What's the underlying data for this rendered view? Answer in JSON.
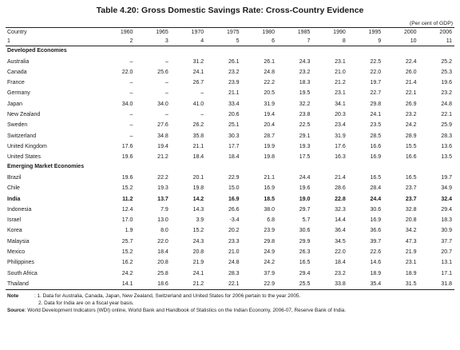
{
  "title": "Table 4.20: Gross Domestic Savings Rate: Cross-Country Evidence",
  "unit": "(Per cent of GDP)",
  "headers": [
    "Country",
    "1960",
    "1965",
    "1970",
    "1975",
    "1980",
    "1985",
    "1990",
    "1995",
    "2000",
    "2006"
  ],
  "index_row": [
    "1",
    "2",
    "3",
    "4",
    "5",
    "6",
    "7",
    "8",
    "9",
    "10",
    "11"
  ],
  "sections": [
    {
      "label": "Developed Economies",
      "rows": [
        {
          "country": "Australia",
          "values": [
            "–",
            "–",
            "31.2",
            "26.1",
            "26.1",
            "24.3",
            "23.1",
            "22.5",
            "22.4",
            "25.2"
          ]
        },
        {
          "country": "Canada",
          "values": [
            "22.0",
            "25.6",
            "24.1",
            "23.2",
            "24.8",
            "23.2",
            "21.0",
            "22.0",
            "26.0",
            "25.3"
          ]
        },
        {
          "country": "France",
          "values": [
            "–",
            "–",
            "26.7",
            "23.9",
            "22.2",
            "18.3",
            "21.2",
            "19.7",
            "21.4",
            "19.6"
          ]
        },
        {
          "country": "Germany",
          "values": [
            "–",
            "–",
            "–",
            "21.1",
            "20.5",
            "19.5",
            "23.1",
            "22.7",
            "22.1",
            "23.2"
          ]
        },
        {
          "country": "Japan",
          "values": [
            "34.0",
            "34.0",
            "41.0",
            "33.4",
            "31.9",
            "32.2",
            "34.1",
            "29.8",
            "26.9",
            "24.8"
          ]
        },
        {
          "country": "New Zealand",
          "values": [
            "–",
            "–",
            "–",
            "20.6",
            "19.4",
            "23.8",
            "20.3",
            "24.1",
            "23.2",
            "22.1"
          ]
        },
        {
          "country": "Sweden",
          "values": [
            "–",
            "27.6",
            "26.2",
            "25.1",
            "20.4",
            "22.5",
            "23.4",
            "23.5",
            "24.2",
            "25.9"
          ]
        },
        {
          "country": "Switzerland",
          "values": [
            "–",
            "34.8",
            "35.8",
            "30.3",
            "28.7",
            "29.1",
            "31.9",
            "28.5",
            "28.9",
            "28.3"
          ]
        },
        {
          "country": "United Kingdom",
          "values": [
            "17.6",
            "19.4",
            "21.1",
            "17.7",
            "19.9",
            "19.3",
            "17.6",
            "16.6",
            "15.5",
            "13.6"
          ]
        },
        {
          "country": "United States",
          "values": [
            "19.6",
            "21.2",
            "18.4",
            "18.4",
            "19.8",
            "17.5",
            "16.3",
            "16.9",
            "16.6",
            "13.5"
          ]
        }
      ]
    },
    {
      "label": "Emerging Market Economies",
      "rows": [
        {
          "country": "Brazil",
          "values": [
            "19.6",
            "22.2",
            "20.1",
            "22.9",
            "21.1",
            "24.4",
            "21.4",
            "16.5",
            "16.5",
            "19.7"
          ]
        },
        {
          "country": "Chile",
          "values": [
            "15.2",
            "19.3",
            "19.8",
            "15.0",
            "16.9",
            "19.6",
            "28.6",
            "28.4",
            "23.7",
            "34.9"
          ]
        },
        {
          "country": "India",
          "bold": true,
          "values": [
            "11.2",
            "13.7",
            "14.2",
            "16.9",
            "18.5",
            "19.0",
            "22.8",
            "24.4",
            "23.7",
            "32.4"
          ]
        },
        {
          "country": "Indonesia",
          "values": [
            "12.4",
            "7.9",
            "14.3",
            "26.6",
            "38.0",
            "29.7",
            "32.3",
            "30.6",
            "32.8",
            "29.4"
          ]
        },
        {
          "country": "Israel",
          "values": [
            "17.0",
            "13.0",
            "3.9",
            "-3.4",
            "6.8",
            "5.7",
            "14.4",
            "16.9",
            "20.8",
            "18.3"
          ]
        },
        {
          "country": "Korea",
          "values": [
            "1.9",
            "8.0",
            "15.2",
            "20.2",
            "23.9",
            "30.6",
            "36.4",
            "36.6",
            "34.2",
            "30.9"
          ]
        },
        {
          "country": "Malaysia",
          "values": [
            "25.7",
            "22.0",
            "24.3",
            "23.3",
            "29.8",
            "29.9",
            "34.5",
            "39.7",
            "47.3",
            "37.7"
          ]
        },
        {
          "country": "Mexico",
          "values": [
            "15.2",
            "18.4",
            "20.8",
            "21.0",
            "24.9",
            "26.3",
            "22.0",
            "22.6",
            "21.9",
            "20.7"
          ]
        },
        {
          "country": "Philippines",
          "values": [
            "16.2",
            "20.8",
            "21.9",
            "24.8",
            "24.2",
            "16.5",
            "18.4",
            "14.6",
            "23.1",
            "13.1"
          ]
        },
        {
          "country": "South Africa",
          "values": [
            "24.2",
            "25.8",
            "24.1",
            "28.3",
            "37.9",
            "29.4",
            "23.2",
            "18.9",
            "18.9",
            "17.1"
          ]
        },
        {
          "country": "Thailand",
          "values": [
            "14.1",
            "18.6",
            "21.2",
            "22.1",
            "22.9",
            "25.5",
            "33.8",
            "35.4",
            "31.5",
            "31.8"
          ]
        }
      ]
    }
  ],
  "notes": {
    "label": "Note",
    "items": [
      ": 1. Data for Australia, Canada, Japan, New Zealand, Switzerland and United States for 2006 pertain to the year 2005.",
      "2. Data for India are on a fiscal year basis."
    ]
  },
  "source": {
    "label": "Source",
    "text": ": World Development Indicators (WDI) online, World Bank and Handbook of Statistics on the Indian Economy, 2006-07, Reserve Bank of India."
  }
}
